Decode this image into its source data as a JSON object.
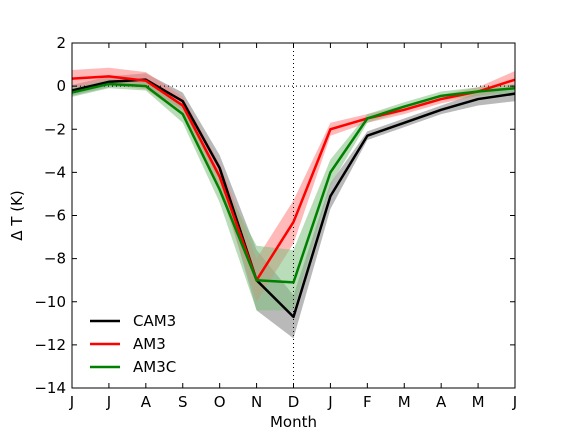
{
  "chart_data": {
    "type": "line",
    "xlabel": "Month",
    "ylabel": "Δ T (K)",
    "ylim": [
      -14,
      2
    ],
    "yticks": [
      2,
      0,
      -2,
      -4,
      -6,
      -8,
      -10,
      -12,
      -14
    ],
    "categories": [
      "J",
      "J",
      "A",
      "S",
      "O",
      "N",
      "D",
      "J",
      "F",
      "M",
      "A",
      "M",
      "J"
    ],
    "grid": false,
    "legend_position": "lower-left",
    "reference_lines": {
      "horizontal_y": 0,
      "vertical_category_index": 6,
      "style": "dotted"
    },
    "series": [
      {
        "name": "CAM3",
        "color": "#000000",
        "band_color": "#808080",
        "values": [
          -0.2,
          0.2,
          0.3,
          -0.7,
          -3.8,
          -9.0,
          -10.7,
          -5.1,
          -2.3,
          -1.7,
          -1.1,
          -0.6,
          -0.35
        ],
        "lower": [
          -0.45,
          -0.05,
          0.0,
          -1.1,
          -4.4,
          -10.4,
          -11.7,
          -5.7,
          -2.5,
          -1.9,
          -1.3,
          -0.9,
          -0.7
        ],
        "upper": [
          0.05,
          0.45,
          0.6,
          -0.3,
          -3.2,
          -7.6,
          -9.7,
          -4.5,
          -2.1,
          -1.5,
          -0.9,
          -0.3,
          0.0
        ]
      },
      {
        "name": "AM3",
        "color": "#ff0000",
        "band_color": "#ff8080",
        "values": [
          0.35,
          0.45,
          0.25,
          -0.9,
          -4.2,
          -9.0,
          -6.3,
          -2.0,
          -1.5,
          -1.1,
          -0.6,
          -0.25,
          0.3
        ],
        "lower": [
          -0.05,
          0.05,
          -0.15,
          -1.3,
          -4.8,
          -10.0,
          -7.3,
          -2.3,
          -1.7,
          -1.3,
          -0.8,
          -0.45,
          -0.1
        ],
        "upper": [
          0.75,
          0.85,
          0.65,
          -0.5,
          -3.6,
          -8.0,
          -5.3,
          -1.7,
          -1.3,
          -0.9,
          -0.4,
          -0.05,
          0.7
        ]
      },
      {
        "name": "AM3C",
        "color": "#008000",
        "band_color": "#80c080",
        "values": [
          -0.3,
          0.1,
          0.0,
          -1.3,
          -4.8,
          -9.0,
          -9.1,
          -4.0,
          -1.5,
          -0.95,
          -0.45,
          -0.25,
          -0.1
        ],
        "lower": [
          -0.5,
          -0.1,
          -0.2,
          -1.7,
          -5.4,
          -10.4,
          -10.4,
          -4.6,
          -1.7,
          -1.15,
          -0.65,
          -0.45,
          -0.3
        ],
        "upper": [
          -0.1,
          0.3,
          0.2,
          -0.9,
          -4.2,
          -7.4,
          -7.6,
          -3.4,
          -1.3,
          -0.75,
          -0.25,
          -0.05,
          0.1
        ]
      }
    ]
  }
}
